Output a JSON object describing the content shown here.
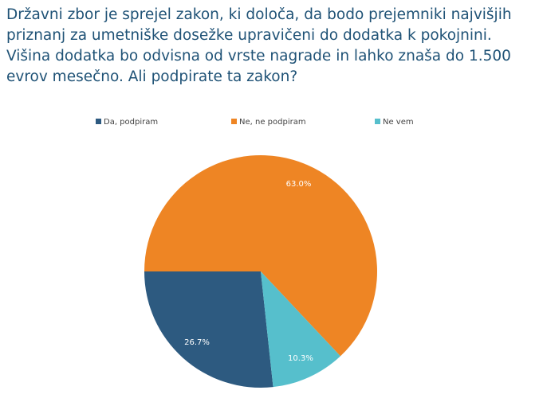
{
  "chart_data": {
    "type": "pie",
    "title": "Državni zbor je sprejel zakon, ki določa, da bodo prejemniki najvišjih priznanj za umetniške dosežke upravičeni do dodatka k pokojnini. Višina dodatka bo odvisna od vrste nagrade in lahko znaša do 1.500 evrov mesečno. Ali podpirate ta zakon?",
    "categories": [
      "Da, podpiram",
      "Ne, ne podpiram",
      "Ne vem"
    ],
    "values": [
      26.7,
      63.0,
      10.3
    ],
    "value_labels": [
      "26.7%",
      "63.0%",
      "10.3%"
    ],
    "colors": [
      "#2d5a80",
      "#ee8524",
      "#56bfcc"
    ],
    "legend": "top"
  }
}
